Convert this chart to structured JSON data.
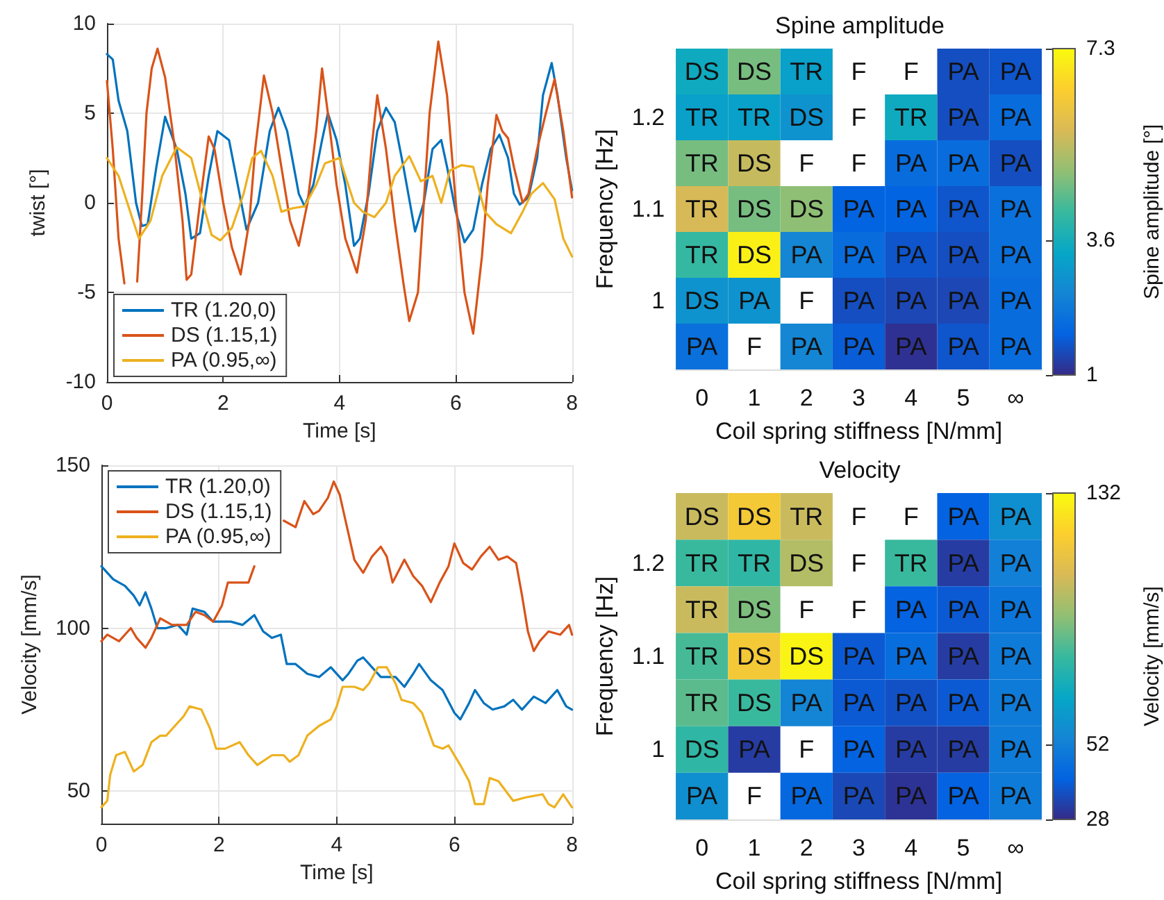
{
  "chart_data": [
    {
      "type": "line",
      "xlabel": "Time [s]",
      "ylabel": "twist [°]",
      "xlim": [
        0,
        8
      ],
      "xticks": [
        0,
        2,
        4,
        6,
        8
      ],
      "ylim": [
        -10,
        10
      ],
      "yticks": [
        -10,
        -5,
        0,
        5,
        10
      ],
      "grid": true,
      "legend": "bottom left",
      "marker": "none",
      "series": [
        {
          "name": "TR (1.20,0)",
          "color": "#0072bd",
          "x": [
            0,
            0.1,
            0.2,
            0.35,
            0.5,
            0.6,
            0.7,
            0.85,
            1.0,
            1.2,
            1.35,
            1.45,
            1.6,
            1.75,
            1.9,
            2.1,
            2.25,
            2.4,
            2.6,
            2.8,
            2.95,
            3.1,
            3.3,
            3.4,
            3.55,
            3.7,
            3.8,
            3.95,
            4.1,
            4.25,
            4.35,
            4.5,
            4.65,
            4.8,
            4.95,
            5.1,
            5.3,
            5.45,
            5.6,
            5.75,
            5.85,
            6.0,
            6.15,
            6.3,
            6.45,
            6.6,
            6.75,
            6.9,
            7.0,
            7.1,
            7.25,
            7.4,
            7.5,
            7.65,
            7.75,
            7.9,
            8.0
          ],
          "values": [
            8.3,
            8,
            5.7,
            4,
            0,
            -1.3,
            -1.2,
            2,
            4.8,
            3,
            0.5,
            -2,
            -1.7,
            1.5,
            4,
            3.5,
            1,
            -1.5,
            0,
            4,
            5.3,
            4,
            0.5,
            -0.2,
            1,
            3.5,
            5,
            3.5,
            1,
            -2.4,
            -2,
            0.5,
            4,
            5.3,
            4.5,
            2,
            -1.6,
            0,
            3,
            3.5,
            2,
            -0.5,
            -2.2,
            -1.5,
            1,
            3,
            3.8,
            2.5,
            0.5,
            -0.1,
            0.3,
            2.5,
            6,
            7.8,
            6,
            2.5,
            0.7
          ]
        },
        {
          "name": "DS (1.15,1)",
          "color": "#d95319",
          "x": [
            0,
            0.1,
            0.2,
            0.3,
            0.42,
            0.52,
            0.6,
            0.68,
            0.77,
            0.87,
            1.0,
            1.15,
            1.3,
            1.37,
            1.45,
            1.6,
            1.75,
            1.85,
            2.0,
            2.15,
            2.3,
            2.45,
            2.55,
            2.7,
            2.85,
            3.0,
            3.15,
            3.3,
            3.45,
            3.6,
            3.7,
            3.8,
            3.95,
            4.1,
            4.3,
            4.45,
            4.55,
            4.65,
            4.8,
            4.95,
            5.1,
            5.2,
            5.35,
            5.45,
            5.55,
            5.7,
            5.85,
            6.0,
            6.15,
            6.3,
            6.45,
            6.55,
            6.7,
            6.8,
            6.9,
            7.0,
            7.15,
            7.25,
            7.4,
            7.55,
            7.7,
            7.85,
            8.0
          ],
          "values": [
            6.8,
            3,
            -2,
            -4.5,
            null,
            -4.4,
            0,
            5,
            7.5,
            8.6,
            7,
            3.5,
            -1,
            -4.3,
            -4,
            0,
            3.7,
            3,
            0,
            -2.5,
            -4,
            -1,
            3,
            7.1,
            5,
            2,
            -1,
            -2.4,
            0,
            4,
            7.5,
            5,
            1,
            -2,
            -3.9,
            -1,
            3,
            6,
            3,
            -1,
            -4.5,
            -6.6,
            -5,
            0,
            5,
            9,
            6,
            0,
            -5,
            -7.3,
            -3,
            1,
            4.9,
            4,
            3.6,
            2,
            0,
            0.5,
            3,
            5,
            6.9,
            4,
            0.3
          ]
        },
        {
          "name": "PA (0.95,∞)",
          "color": "#edb120",
          "x": [
            0,
            0.2,
            0.35,
            0.55,
            0.75,
            0.95,
            1.2,
            1.45,
            1.65,
            1.8,
            1.95,
            2.15,
            2.35,
            2.5,
            2.65,
            2.85,
            3.0,
            3.2,
            3.4,
            3.6,
            3.75,
            4.0,
            4.1,
            4.25,
            4.4,
            4.6,
            4.8,
            4.95,
            5.2,
            5.4,
            5.6,
            5.75,
            5.9,
            6.1,
            6.3,
            6.5,
            6.7,
            6.95,
            7.15,
            7.3,
            7.5,
            7.7,
            7.85,
            8.0
          ],
          "values": [
            2.5,
            1.5,
            0,
            -2,
            -1,
            1.5,
            3.1,
            2.5,
            0,
            -1.8,
            -2.1,
            -1.4,
            0.5,
            2.5,
            2.9,
            1.5,
            -0.5,
            -0.3,
            -0.2,
            1,
            2.2,
            2.5,
            1.5,
            0,
            -0.5,
            -0.8,
            0,
            1.5,
            2.6,
            1.2,
            1.5,
            0,
            1.8,
            2.1,
            2,
            -0.5,
            -1.2,
            -1.7,
            -0.5,
            0.5,
            1.1,
            0.2,
            -2,
            -3
          ]
        }
      ]
    },
    {
      "type": "heatmap",
      "title": "Spine amplitude",
      "xlabel": "Coil spring stiffness [N/mm]",
      "ylabel": "Frequency [Hz]",
      "clabel": "Spine amplitude [°]",
      "clim": [
        1,
        7.3
      ],
      "cticks": [
        1,
        3.6,
        7.3
      ],
      "categories": [
        "0",
        "1",
        "2",
        "3",
        "4",
        "5",
        "∞"
      ],
      "y_categories": [
        null,
        "1.2",
        null,
        "1.1",
        null,
        "1",
        null
      ],
      "cells": [
        [
          3.5,
          4.7,
          3.2,
          null,
          null,
          1.5,
          1.6
        ],
        [
          3.2,
          3.2,
          2.9,
          null,
          3.5,
          1.5,
          2.0
        ],
        [
          4.7,
          5.5,
          null,
          null,
          2.0,
          2.0,
          1.5
        ],
        [
          5.7,
          4.7,
          4.9,
          1.8,
          1.8,
          1.6,
          2.1
        ],
        [
          4.1,
          7.1,
          2.6,
          2.0,
          1.6,
          1.5,
          2.1
        ],
        [
          2.9,
          2.9,
          null,
          1.5,
          1.4,
          1.4,
          2.0
        ],
        [
          2.1,
          null,
          2.6,
          1.7,
          1.1,
          1.6,
          2.0
        ]
      ],
      "cell_labels": [
        [
          "DS",
          "DS",
          "TR",
          "F",
          "F",
          "PA",
          "PA"
        ],
        [
          "TR",
          "TR",
          "DS",
          "F",
          "TR",
          "PA",
          "PA"
        ],
        [
          "TR",
          "DS",
          "F",
          "F",
          "PA",
          "PA",
          "PA"
        ],
        [
          "TR",
          "DS",
          "DS",
          "PA",
          "PA",
          "PA",
          "PA"
        ],
        [
          "TR",
          "DS",
          "PA",
          "PA",
          "PA",
          "PA",
          "PA"
        ],
        [
          "DS",
          "PA",
          "F",
          "PA",
          "PA",
          "PA",
          "PA"
        ],
        [
          "PA",
          "F",
          "PA",
          "PA",
          "PA",
          "PA",
          "PA"
        ]
      ]
    },
    {
      "type": "line",
      "xlabel": "Time [s]",
      "ylabel": "Velocity [mm/s]",
      "xlim": [
        0,
        8
      ],
      "xticks": [
        0,
        2,
        4,
        6,
        8
      ],
      "ylim": [
        40,
        150
      ],
      "yticks": [
        50,
        100,
        150
      ],
      "grid": true,
      "legend": "top left",
      "marker": "none",
      "series": [
        {
          "name": "TR (1.20,0)",
          "color": "#0072bd",
          "x": [
            0,
            0.2,
            0.4,
            0.55,
            0.65,
            0.75,
            0.85,
            0.95,
            1.1,
            1.3,
            1.45,
            1.55,
            1.75,
            1.9,
            2.2,
            2.4,
            2.6,
            2.75,
            2.9,
            3.05,
            3.15,
            3.3,
            3.5,
            3.7,
            3.9,
            4.1,
            4.2,
            4.35,
            4.45,
            4.6,
            4.75,
            5.0,
            5.15,
            5.3,
            5.4,
            5.6,
            5.8,
            6.0,
            6.1,
            6.25,
            6.35,
            6.5,
            6.65,
            6.85,
            7.0,
            7.15,
            7.35,
            7.55,
            7.75,
            7.9,
            8.0
          ],
          "values": [
            119,
            115,
            113,
            110,
            107,
            111,
            106,
            100,
            100,
            101,
            98,
            106,
            105,
            102,
            102,
            101,
            104,
            99,
            97,
            98,
            89,
            89,
            86,
            85,
            88,
            84,
            86,
            90,
            91,
            88,
            85,
            85,
            82,
            86,
            89,
            84,
            81,
            74,
            72,
            77,
            81,
            77,
            75,
            76,
            78,
            75,
            79,
            77,
            81,
            76,
            75
          ]
        },
        {
          "name": "DS (1.15,1)",
          "color": "#d95319",
          "x": [
            0,
            0.1,
            0.3,
            0.5,
            0.6,
            0.75,
            0.85,
            1.0,
            1.2,
            1.45,
            1.6,
            1.75,
            1.9,
            2.05,
            2.15,
            2.5,
            2.6,
            2.8,
            3.1,
            3.3,
            3.45,
            3.6,
            3.7,
            3.85,
            3.95,
            4.05,
            4.15,
            4.3,
            4.45,
            4.6,
            4.75,
            4.85,
            4.95,
            5.15,
            5.3,
            5.45,
            5.6,
            5.75,
            5.9,
            6.0,
            6.15,
            6.3,
            6.45,
            6.6,
            6.75,
            6.9,
            7.05,
            7.15,
            7.25,
            7.35,
            7.45,
            7.6,
            7.8,
            7.95,
            8.0
          ],
          "values": [
            96,
            98,
            96,
            100,
            97,
            94,
            97,
            103,
            101,
            101,
            105,
            104,
            102,
            107,
            114,
            114,
            119,
            null,
            133,
            131,
            139,
            135,
            136,
            140,
            145,
            141,
            133,
            121,
            117,
            122,
            125,
            122,
            114,
            121,
            116,
            113,
            108,
            114,
            119,
            126,
            120,
            118,
            122,
            125,
            121,
            122,
            120,
            110,
            99,
            93,
            96,
            99,
            98,
            101,
            98
          ]
        },
        {
          "name": "PA (0.95,∞)",
          "color": "#edb120",
          "x": [
            0,
            0.1,
            0.15,
            0.25,
            0.4,
            0.55,
            0.7,
            0.85,
            1.0,
            1.1,
            1.25,
            1.4,
            1.5,
            1.7,
            1.85,
            1.95,
            2.1,
            2.35,
            2.5,
            2.65,
            2.9,
            3.1,
            3.2,
            3.35,
            3.5,
            3.7,
            3.9,
            4.0,
            4.1,
            4.3,
            4.45,
            4.55,
            4.7,
            4.85,
            5.0,
            5.1,
            5.3,
            5.45,
            5.65,
            5.8,
            5.9,
            6.1,
            6.25,
            6.35,
            6.5,
            6.6,
            6.75,
            7.0,
            7.2,
            7.5,
            7.6,
            7.7,
            7.85,
            8.0
          ],
          "values": [
            45,
            47,
            55,
            61,
            62,
            56,
            58,
            65,
            67,
            67,
            70,
            73,
            76,
            75,
            69,
            63,
            63,
            65,
            61,
            58,
            61,
            61,
            59,
            61,
            67,
            70,
            72,
            76,
            82,
            82,
            81,
            83,
            88,
            88,
            83,
            78,
            77,
            74,
            64,
            63,
            64,
            58,
            53,
            46,
            46,
            54,
            53,
            47,
            48,
            49,
            46,
            45,
            49,
            45
          ]
        }
      ]
    },
    {
      "type": "heatmap",
      "title": "Velocity",
      "xlabel": "Coil spring stiffness [N/mm]",
      "ylabel": "Frequency [Hz]",
      "clabel": "Velocity [mm/s]",
      "clim": [
        28,
        132
      ],
      "cticks": [
        28,
        52,
        132
      ],
      "categories": [
        "0",
        "1",
        "2",
        "3",
        "4",
        "5",
        "∞"
      ],
      "y_categories": [
        null,
        "1.2",
        null,
        "1.1",
        null,
        "1",
        null
      ],
      "cells": [
        [
          103,
          116,
          103,
          null,
          null,
          41,
          58
        ],
        [
          80,
          78,
          99,
          null,
          80,
          32,
          52
        ],
        [
          103,
          90,
          null,
          null,
          41,
          39,
          48
        ],
        [
          82,
          116,
          130,
          39,
          45,
          32,
          50
        ],
        [
          85,
          80,
          54,
          39,
          37,
          39,
          50
        ],
        [
          78,
          32,
          null,
          41,
          32,
          32,
          50
        ],
        [
          58,
          null,
          43,
          35,
          30,
          41,
          50
        ]
      ],
      "cell_labels": [
        [
          "DS",
          "DS",
          "TR",
          "F",
          "F",
          "PA",
          "PA"
        ],
        [
          "TR",
          "TR",
          "DS",
          "F",
          "TR",
          "PA",
          "PA"
        ],
        [
          "TR",
          "DS",
          "F",
          "F",
          "PA",
          "PA",
          "PA"
        ],
        [
          "TR",
          "DS",
          "DS",
          "PA",
          "PA",
          "PA",
          "PA"
        ],
        [
          "TR",
          "DS",
          "PA",
          "PA",
          "PA",
          "PA",
          "PA"
        ],
        [
          "DS",
          "PA",
          "F",
          "PA",
          "PA",
          "PA",
          "PA"
        ],
        [
          "PA",
          "F",
          "PA",
          "PA",
          "PA",
          "PA",
          "PA"
        ]
      ]
    }
  ]
}
